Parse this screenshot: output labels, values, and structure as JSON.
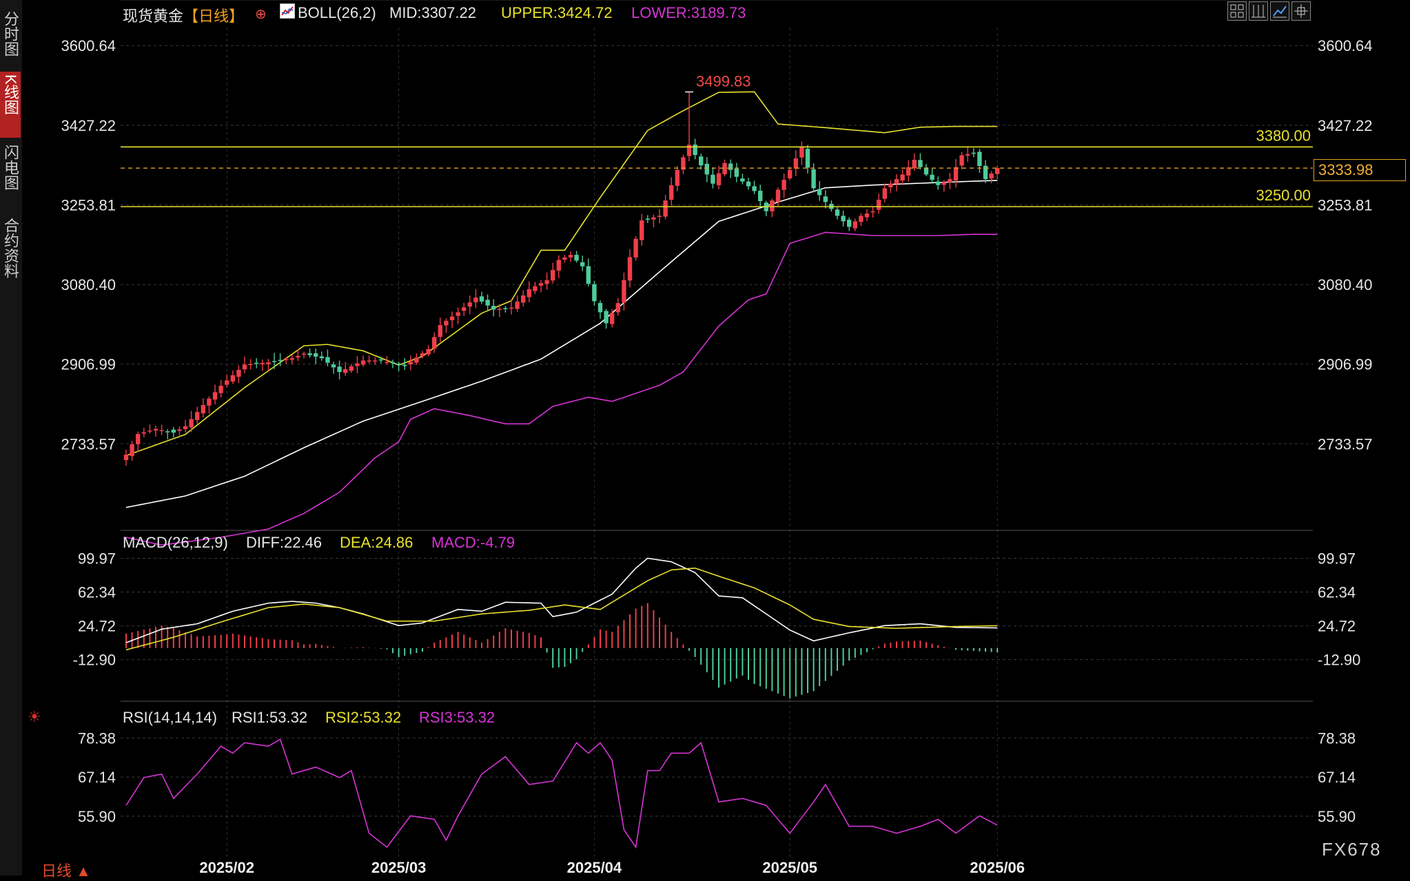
{
  "side_tabs": [
    {
      "label": "分时图",
      "active": false
    },
    {
      "label": "K线图",
      "active": true
    },
    {
      "label": "闪电图",
      "active": false
    },
    {
      "label": "合约资料",
      "active": false
    }
  ],
  "header": {
    "symbol": "现货黄金",
    "period_tag": "【日线】",
    "indicator_icon": "chart-line-icon",
    "boll": "BOLL(26,2)",
    "mid": "MID:3307.22",
    "upper": "UPPER:3424.72",
    "lower": "LOWER:3189.73"
  },
  "toolbar": [
    "grid-layout-icon",
    "columns-icon",
    "line-chart-icon",
    "crosshair-icon"
  ],
  "macd_header": {
    "name": "MACD(26,12,9)",
    "diff": "DIFF:22.46",
    "dea": "DEA:24.86",
    "macd": "MACD:-4.79"
  },
  "rsi_header": {
    "name": "RSI(14,14,14)",
    "rsi1": "RSI1:53.32",
    "rsi2": "RSI2:53.32",
    "rsi3": "RSI3:53.32"
  },
  "current_price": "3333.98",
  "watermark": "FX678",
  "period_label": "日线",
  "sun_icon": "settings-sun-icon",
  "colors": {
    "up": "#ef3e4a",
    "down": "#4ecb9a",
    "mid": "#ffffff",
    "upper": "#e8e22e",
    "lower": "#d634d6",
    "level": "#e8e22e",
    "axis": "#e6e6e6"
  },
  "chart_data": [
    {
      "type": "candlestick",
      "title": "现货黄金【日线】",
      "y_ticks": [
        3600.64,
        3427.22,
        3253.81,
        3080.4,
        2906.99,
        2733.57
      ],
      "ylim": [
        2560,
        3640
      ],
      "x_tick_labels": [
        "2025/02",
        "2025/03",
        "2025/04",
        "2025/05",
        "2025/06"
      ],
      "annotations": [
        {
          "label": "3499.83",
          "value": 3499.83
        },
        {
          "label": "3380.00",
          "value": 3380.0
        },
        {
          "label": "3250.00",
          "value": 3250.0
        }
      ],
      "price_line": 3333.98,
      "anchors": {
        "close": [
          [
            0,
            2710
          ],
          [
            2,
            2755
          ],
          [
            5,
            2766
          ],
          [
            8,
            2758
          ],
          [
            10,
            2772
          ],
          [
            13,
            2818
          ],
          [
            16,
            2860
          ],
          [
            20,
            2906
          ],
          [
            24,
            2911
          ],
          [
            28,
            2920
          ],
          [
            30,
            2930
          ],
          [
            33,
            2920
          ],
          [
            36,
            2890
          ],
          [
            40,
            2915
          ],
          [
            43,
            2915
          ],
          [
            47,
            2903
          ],
          [
            51,
            2940
          ],
          [
            53,
            2992
          ],
          [
            56,
            3020
          ],
          [
            59,
            3052
          ],
          [
            62,
            3026
          ],
          [
            65,
            3030
          ],
          [
            68,
            3070
          ],
          [
            71,
            3090
          ],
          [
            73,
            3134
          ],
          [
            75,
            3145
          ],
          [
            77,
            3120
          ],
          [
            79,
            3044
          ],
          [
            81,
            2996
          ],
          [
            83,
            3040
          ],
          [
            85,
            3140
          ],
          [
            87,
            3220
          ],
          [
            90,
            3230
          ],
          [
            93,
            3330
          ],
          [
            95,
            3385
          ],
          [
            97,
            3340
          ],
          [
            99,
            3300
          ],
          [
            101,
            3345
          ],
          [
            103,
            3315
          ],
          [
            106,
            3284
          ],
          [
            108,
            3240
          ],
          [
            110,
            3287
          ],
          [
            112,
            3330
          ],
          [
            114,
            3380
          ],
          [
            116,
            3290
          ],
          [
            118,
            3260
          ],
          [
            120,
            3230
          ],
          [
            122,
            3206
          ],
          [
            124,
            3230
          ],
          [
            126,
            3240
          ],
          [
            128,
            3290
          ],
          [
            131,
            3320
          ],
          [
            133,
            3352
          ],
          [
            135,
            3320
          ],
          [
            137,
            3297
          ],
          [
            139,
            3310
          ],
          [
            141,
            3362
          ],
          [
            143,
            3367
          ],
          [
            145,
            3310
          ],
          [
            147,
            3333.98
          ]
        ],
        "mid": [
          [
            0,
            2595
          ],
          [
            10,
            2620
          ],
          [
            20,
            2663
          ],
          [
            30,
            2725
          ],
          [
            40,
            2783
          ],
          [
            50,
            2826
          ],
          [
            60,
            2870
          ],
          [
            70,
            2918
          ],
          [
            80,
            2996
          ],
          [
            90,
            3108
          ],
          [
            100,
            3218
          ],
          [
            110,
            3260
          ],
          [
            118,
            3291
          ],
          [
            126,
            3297
          ],
          [
            140,
            3304
          ],
          [
            147,
            3307.22
          ]
        ],
        "upper": [
          [
            0,
            2708
          ],
          [
            10,
            2754
          ],
          [
            20,
            2856
          ],
          [
            30,
            2947
          ],
          [
            34,
            2950
          ],
          [
            40,
            2936
          ],
          [
            46,
            2905
          ],
          [
            50,
            2924
          ],
          [
            60,
            3018
          ],
          [
            65,
            3045
          ],
          [
            70,
            3155
          ],
          [
            74,
            3155
          ],
          [
            80,
            3270
          ],
          [
            88,
            3416
          ],
          [
            94,
            3459
          ],
          [
            100,
            3499
          ],
          [
            106,
            3500
          ],
          [
            110,
            3430
          ],
          [
            118,
            3422
          ],
          [
            128,
            3411
          ],
          [
            134,
            3423
          ],
          [
            140,
            3424.72
          ],
          [
            147,
            3424.72
          ]
        ],
        "lower": [
          [
            0,
            2530
          ],
          [
            6,
            2513
          ],
          [
            16,
            2530
          ],
          [
            24,
            2548
          ],
          [
            30,
            2582
          ],
          [
            36,
            2628
          ],
          [
            42,
            2703
          ],
          [
            46,
            2738
          ],
          [
            48,
            2787
          ],
          [
            52,
            2810
          ],
          [
            58,
            2795
          ],
          [
            64,
            2777
          ],
          [
            68,
            2777
          ],
          [
            72,
            2815
          ],
          [
            78,
            2835
          ],
          [
            82,
            2826
          ],
          [
            90,
            2861
          ],
          [
            94,
            2890
          ],
          [
            100,
            2990
          ],
          [
            105,
            3047
          ],
          [
            108,
            3060
          ],
          [
            112,
            3170
          ],
          [
            118,
            3194
          ],
          [
            126,
            3187
          ],
          [
            137,
            3187
          ],
          [
            143,
            3189.73
          ],
          [
            147,
            3189.73
          ]
        ]
      },
      "peak": {
        "index": 95,
        "high": 3499.83
      }
    },
    {
      "type": "macd",
      "title": "MACD(26,12,9)",
      "y_ticks": [
        99.97,
        62.34,
        24.72,
        -12.9
      ],
      "ylim": [
        -50,
        108
      ],
      "anchors": {
        "diff": [
          [
            0,
            6
          ],
          [
            6,
            21
          ],
          [
            12,
            27
          ],
          [
            18,
            41
          ],
          [
            24,
            50
          ],
          [
            28,
            52
          ],
          [
            32,
            50
          ],
          [
            36,
            45
          ],
          [
            40,
            38
          ],
          [
            46,
            25
          ],
          [
            50,
            28
          ],
          [
            56,
            43
          ],
          [
            60,
            41
          ],
          [
            64,
            51
          ],
          [
            70,
            50
          ],
          [
            72,
            35
          ],
          [
            76,
            40
          ],
          [
            82,
            60
          ],
          [
            86,
            89
          ],
          [
            88,
            100
          ],
          [
            92,
            96
          ],
          [
            96,
            84
          ],
          [
            100,
            58
          ],
          [
            104,
            56
          ],
          [
            108,
            38
          ],
          [
            112,
            20
          ],
          [
            116,
            8
          ],
          [
            122,
            17
          ],
          [
            128,
            25
          ],
          [
            134,
            27
          ],
          [
            140,
            23
          ],
          [
            147,
            22.46
          ]
        ],
        "dea": [
          [
            0,
            -2
          ],
          [
            8,
            12
          ],
          [
            16,
            29
          ],
          [
            24,
            45
          ],
          [
            30,
            49
          ],
          [
            36,
            45
          ],
          [
            44,
            30
          ],
          [
            52,
            30
          ],
          [
            60,
            38
          ],
          [
            68,
            42
          ],
          [
            74,
            48
          ],
          [
            80,
            43
          ],
          [
            88,
            75
          ],
          [
            92,
            87
          ],
          [
            96,
            89
          ],
          [
            100,
            80
          ],
          [
            106,
            67
          ],
          [
            112,
            48
          ],
          [
            116,
            32
          ],
          [
            122,
            24
          ],
          [
            130,
            22
          ],
          [
            140,
            24
          ],
          [
            147,
            24.86
          ]
        ]
      }
    },
    {
      "type": "rsi",
      "title": "RSI(14,14,14)",
      "y_ticks": [
        78.38,
        67.14,
        55.9
      ],
      "ylim": [
        45,
        82
      ],
      "anchors": {
        "rsi": [
          [
            0,
            59
          ],
          [
            3,
            67
          ],
          [
            6,
            68
          ],
          [
            8,
            61
          ],
          [
            12,
            68
          ],
          [
            16,
            76
          ],
          [
            18,
            74
          ],
          [
            20,
            77
          ],
          [
            24,
            76
          ],
          [
            26,
            78
          ],
          [
            28,
            68
          ],
          [
            32,
            70
          ],
          [
            36,
            67
          ],
          [
            38,
            69
          ],
          [
            41,
            51
          ],
          [
            44,
            47
          ],
          [
            48,
            56
          ],
          [
            52,
            55
          ],
          [
            54,
            49
          ],
          [
            56,
            56
          ],
          [
            60,
            68
          ],
          [
            64,
            73
          ],
          [
            68,
            65
          ],
          [
            72,
            66
          ],
          [
            76,
            77
          ],
          [
            78,
            74
          ],
          [
            80,
            77
          ],
          [
            82,
            72
          ],
          [
            84,
            52
          ],
          [
            86,
            47
          ],
          [
            88,
            69
          ],
          [
            90,
            69
          ],
          [
            92,
            74
          ],
          [
            95,
            74
          ],
          [
            97,
            77
          ],
          [
            100,
            60
          ],
          [
            104,
            61
          ],
          [
            108,
            59
          ],
          [
            112,
            51
          ],
          [
            116,
            60
          ],
          [
            118,
            65
          ],
          [
            122,
            53
          ],
          [
            126,
            53
          ],
          [
            130,
            51
          ],
          [
            134,
            53
          ],
          [
            137,
            55
          ],
          [
            140,
            51
          ],
          [
            144,
            56
          ],
          [
            147,
            53.32
          ]
        ]
      }
    }
  ]
}
